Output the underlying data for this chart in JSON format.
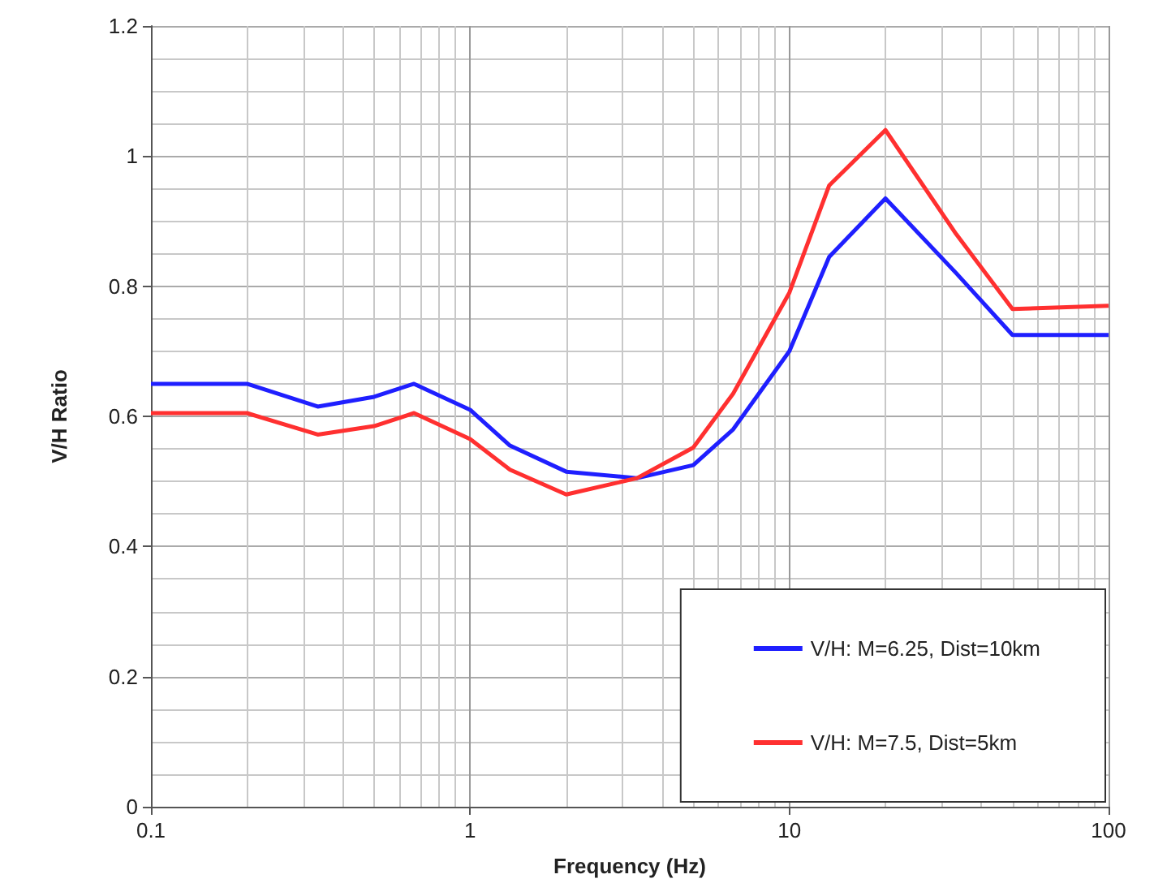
{
  "chart_data": {
    "type": "line",
    "xlabel": "Frequency (Hz)",
    "ylabel": "V/H Ratio",
    "x": [
      0.1,
      0.2,
      0.333,
      0.5,
      0.667,
      1,
      1.333,
      2,
      3.333,
      5,
      6.667,
      10,
      13.33,
      20,
      33.33,
      50,
      100
    ],
    "series": [
      {
        "name": "V/H: M=6.25, Dist=10km",
        "color": "#1f1fff",
        "values": [
          0.65,
          0.65,
          0.615,
          0.63,
          0.65,
          0.61,
          0.555,
          0.515,
          0.505,
          0.525,
          0.58,
          0.7,
          0.845,
          0.935,
          0.82,
          0.725,
          0.725
        ]
      },
      {
        "name": "V/H: M=7.5, Dist=5km",
        "color": "#ff3030",
        "values": [
          0.605,
          0.605,
          0.572,
          0.585,
          0.605,
          0.565,
          0.518,
          0.48,
          0.505,
          0.552,
          0.635,
          0.79,
          0.955,
          1.04,
          0.88,
          0.765,
          0.77
        ]
      }
    ],
    "log": "x",
    "xlim": [
      0.1,
      100
    ],
    "xticks": [
      0.1,
      1,
      10,
      100
    ],
    "ylim": [
      0,
      1.2
    ],
    "yticks": [
      0,
      0.2,
      0.4,
      0.6,
      0.8,
      1,
      1.2
    ],
    "grid": true,
    "legend": "bottom right",
    "marker": "none",
    "line_style": "solid"
  }
}
